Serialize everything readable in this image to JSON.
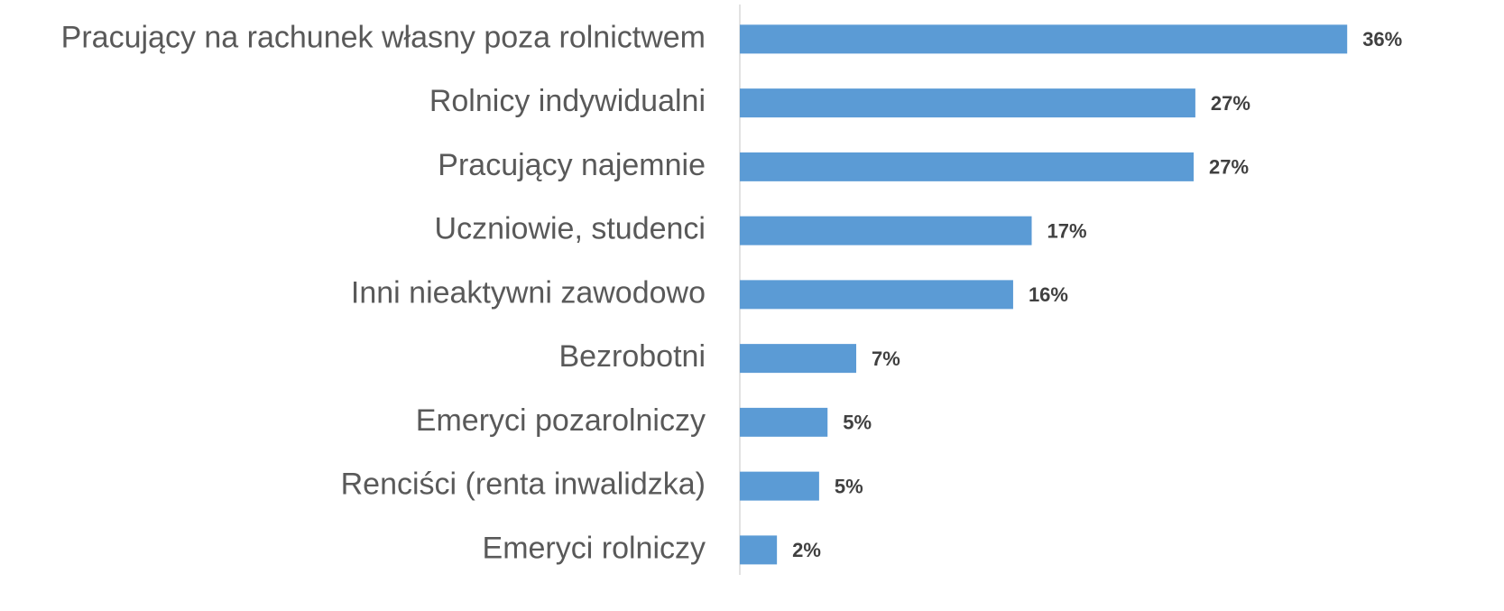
{
  "chart_data": {
    "type": "barh",
    "categories": [
      "Pracujący na rachunek własny poza rolnictwem",
      "Rolnicy indywidualni",
      "Pracujący najemnie",
      "Uczniowie, studenci",
      "Inni nieaktywni zawodowo",
      "Bezrobotni",
      "Emeryci pozarolniczy",
      "Renciści (renta inwalidzka)",
      "Emeryci rolniczy"
    ],
    "values": [
      36.0,
      27.0,
      26.9,
      17.3,
      16.2,
      6.9,
      5.2,
      4.7,
      2.2
    ],
    "value_labels": [
      "36%",
      "27%",
      "27%",
      "17%",
      "16%",
      "7%",
      "5%",
      "5%",
      "2%"
    ],
    "color": "#5b9bd5",
    "xlim": [
      0,
      40
    ]
  }
}
